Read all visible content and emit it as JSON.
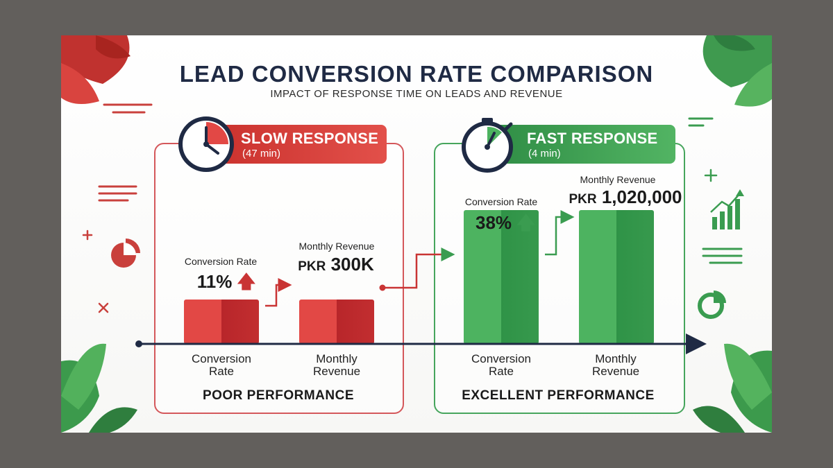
{
  "title": "LEAD CONVERSION RATE COMPARISON",
  "subtitle": "IMPACT OF RESPONSE TIME ON LEADS AND REVENUE",
  "colors": {
    "slow": "#d23a37",
    "fast": "#3aa152",
    "axis": "#1f2a44"
  },
  "slow": {
    "heading": "SLOW RESPONSE",
    "time": "(47 min)",
    "performance": "POOR PERFORMANCE",
    "conversion_title": "Conversion Rate",
    "conversion_value": "11%",
    "revenue_title": "Monthly Revenue",
    "revenue_currency": "PKR",
    "revenue_value": "300K",
    "axis_conversion": [
      "Conversion",
      "Rate"
    ],
    "axis_revenue": [
      "Monthly",
      "Revenue"
    ]
  },
  "fast": {
    "heading": "FAST RESPONSE",
    "time": "(4 min)",
    "performance": "EXCELLENT PERFORMANCE",
    "conversion_title": "Conversion Rate",
    "conversion_value": "38%",
    "revenue_title": "Monthly Revenue",
    "revenue_currency": "PKR",
    "revenue_value": "1,020,000",
    "axis_conversion": [
      "Conversion",
      "Rate"
    ],
    "axis_revenue": [
      "Monthly",
      "Revenue"
    ]
  },
  "icons": [
    "stopwatch-icon",
    "pie-chart-icon",
    "bar-chart-icon",
    "leaf-icon",
    "plus-icon"
  ],
  "chart_data": [
    {
      "type": "bar",
      "categories": [
        "Conversion Rate",
        "Monthly Revenue"
      ],
      "series": [
        {
          "name": "SLOW RESPONSE",
          "values": [
            11,
            300000
          ]
        },
        {
          "name": "FAST RESPONSE",
          "values": [
            38,
            1020000
          ]
        }
      ]
    }
  ]
}
